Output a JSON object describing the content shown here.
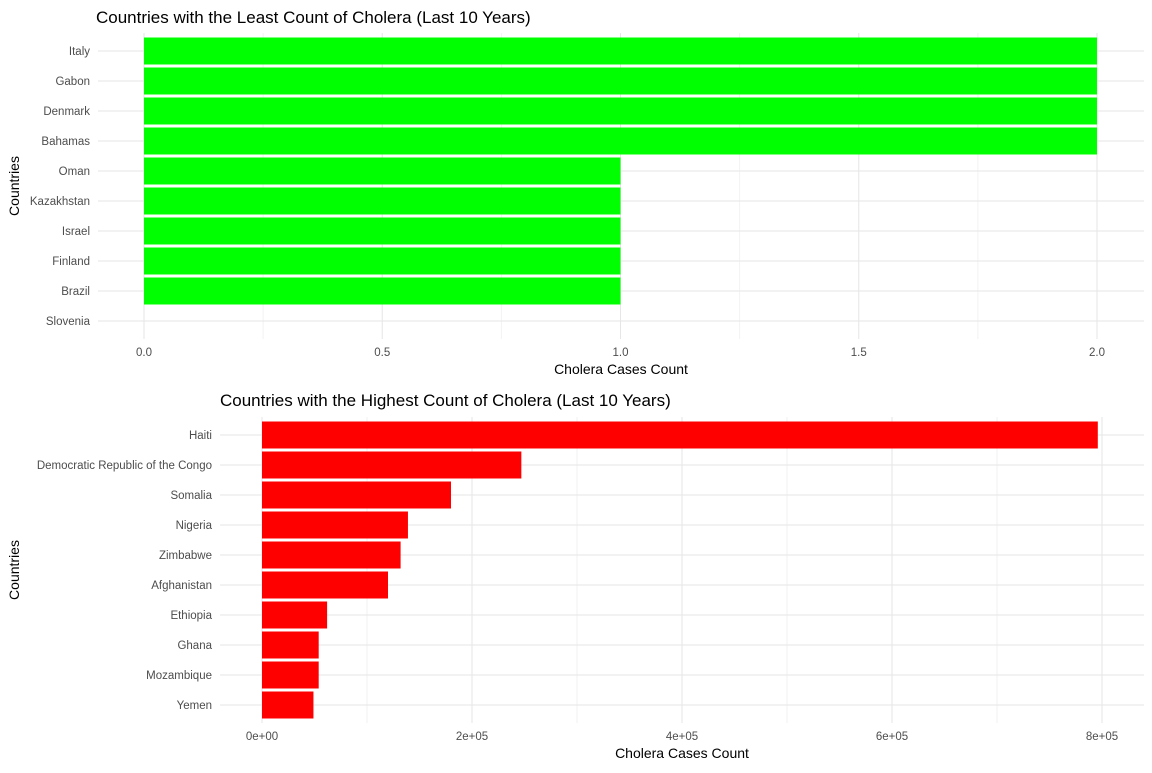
{
  "chart_data": [
    {
      "type": "bar",
      "orientation": "horizontal",
      "title": "Countries with the Least Count of Cholera (Last 10 Years)",
      "xlabel": "Cholera Cases Count",
      "ylabel": "Countries",
      "categories": [
        "Italy",
        "Gabon",
        "Denmark",
        "Bahamas",
        "Oman",
        "Kazakhstan",
        "Israel",
        "Finland",
        "Brazil",
        "Slovenia"
      ],
      "values": [
        2,
        2,
        2,
        2,
        1,
        1,
        1,
        1,
        1,
        0
      ],
      "xlim": [
        0,
        2
      ],
      "x_ticks": [
        0,
        0.5,
        1,
        1.5,
        2
      ],
      "x_tick_labels": [
        "0.0",
        "0.5",
        "1.0",
        "1.5",
        "2.0"
      ],
      "bar_color": "#00ff00",
      "grid": true,
      "legend": "none"
    },
    {
      "type": "bar",
      "orientation": "horizontal",
      "title": "Countries with the Highest Count of Cholera (Last 10 Years)",
      "xlabel": "Cholera Cases Count",
      "ylabel": "Countries",
      "categories": [
        "Haiti",
        "Democratic Republic of the Congo",
        "Somalia",
        "Nigeria",
        "Zimbabwe",
        "Afghanistan",
        "Ethiopia",
        "Ghana",
        "Mozambique",
        "Yemen"
      ],
      "values": [
        796000,
        247000,
        180000,
        139000,
        132000,
        120000,
        62000,
        54000,
        54000,
        49000
      ],
      "xlim": [
        0,
        800000
      ],
      "x_ticks": [
        0,
        200000,
        400000,
        600000,
        800000
      ],
      "x_tick_labels": [
        "0e+00",
        "2e+05",
        "4e+05",
        "6e+05",
        "8e+05"
      ],
      "bar_color": "#ff0000",
      "grid": true,
      "legend": "none"
    }
  ]
}
